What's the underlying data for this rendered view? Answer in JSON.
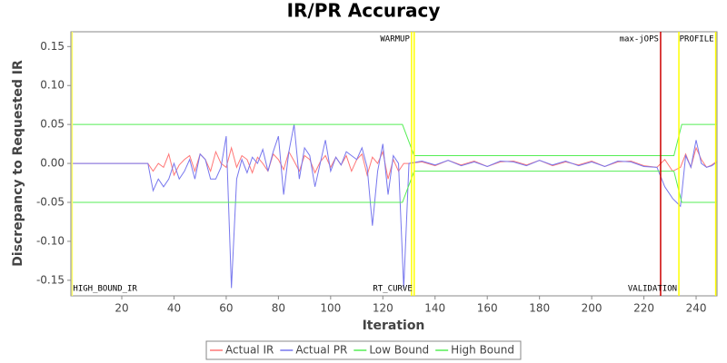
{
  "chart_data": {
    "type": "line",
    "title": "IR/PR Accuracy",
    "x_label": "Iteration",
    "y_label": "Discrepancy to Requested IR",
    "xlim": [
      0.5,
      248
    ],
    "ylim": [
      -0.17,
      0.169
    ],
    "xticks": [
      20,
      40,
      60,
      80,
      100,
      120,
      140,
      160,
      180,
      200,
      220,
      240
    ],
    "yticks": [
      -0.15,
      {
        "value": -0.1,
        "label": "-0.10"
      },
      -0.05,
      {
        "value": 0,
        "label": "0.00"
      },
      0.05,
      {
        "value": 0.1,
        "label": "0.10"
      },
      0.15
    ],
    "grid": false,
    "legend": "bottom",
    "markers": [
      {
        "value": 1,
        "label": "HIGH_BOUND_IR",
        "position": "bottom",
        "color": "#ffff66"
      },
      {
        "value": 131,
        "label": "WARMUP",
        "position": "top",
        "color": "#ffff00"
      },
      {
        "value": 132,
        "label": "RT_CURVE",
        "position": "bottom",
        "color": "#ffff00"
      },
      {
        "value": 226.4,
        "label": "max-jOPS",
        "position": "top",
        "color": "#cc0000"
      },
      {
        "value": 233.4,
        "label": "VALIDATION",
        "position": "bottom",
        "color": "#ffff00"
      },
      {
        "value": 247.5,
        "label": "PROFILE",
        "position": "top",
        "color": "#ffff00"
      }
    ],
    "series": [
      {
        "name": "Actual IR",
        "color": "#ff7777",
        "x": [
          1,
          30,
          32,
          34,
          36,
          38,
          40,
          42,
          44,
          46,
          48,
          50,
          52,
          54,
          56,
          58,
          60,
          62,
          64,
          66,
          68,
          70,
          72,
          74,
          76,
          78,
          80,
          82,
          84,
          86,
          88,
          90,
          92,
          94,
          96,
          98,
          100,
          102,
          104,
          106,
          108,
          110,
          112,
          114,
          116,
          118,
          120,
          122,
          124,
          126,
          128,
          130,
          135,
          140,
          145,
          150,
          155,
          160,
          165,
          170,
          175,
          180,
          185,
          190,
          195,
          200,
          205,
          210,
          215,
          220,
          225,
          228,
          231,
          234,
          236,
          238,
          240,
          242,
          244,
          246,
          248
        ],
        "values": [
          0,
          0,
          -0.01,
          0.0,
          -0.005,
          0.012,
          -0.015,
          -0.002,
          0.005,
          0.01,
          -0.01,
          0.012,
          0.005,
          -0.01,
          0.015,
          0.0,
          -0.005,
          0.02,
          -0.005,
          0.01,
          0.005,
          -0.012,
          0.008,
          0.0,
          -0.01,
          0.012,
          0.005,
          -0.008,
          0.015,
          0.003,
          -0.01,
          0.01,
          0.005,
          -0.012,
          0.002,
          0.01,
          -0.005,
          0.008,
          -0.002,
          0.01,
          -0.01,
          0.005,
          0.012,
          -0.015,
          0.008,
          0.0,
          0.015,
          -0.02,
          0.005,
          -0.01,
          0.0,
          0.0,
          0.002,
          -0.003,
          0.004,
          -0.002,
          0.003,
          -0.004,
          0.002,
          0.003,
          -0.002,
          0.004,
          -0.003,
          0.002,
          -0.002,
          0.003,
          -0.004,
          0.002,
          0.003,
          -0.003,
          -0.005,
          0.005,
          -0.01,
          -0.005,
          0.012,
          -0.005,
          0.02,
          0.005,
          -0.005,
          -0.002,
          0.003
        ]
      },
      {
        "name": "Actual PR",
        "color": "#7777ee",
        "x": [
          1,
          30,
          32,
          34,
          36,
          38,
          40,
          42,
          44,
          46,
          48,
          50,
          52,
          54,
          56,
          58,
          60,
          62,
          64,
          66,
          68,
          70,
          72,
          74,
          76,
          78,
          80,
          82,
          84,
          86,
          88,
          90,
          92,
          94,
          96,
          98,
          100,
          102,
          104,
          106,
          108,
          110,
          112,
          114,
          116,
          118,
          120,
          122,
          124,
          126,
          128,
          130,
          135,
          140,
          145,
          150,
          155,
          160,
          165,
          170,
          175,
          180,
          185,
          190,
          195,
          200,
          205,
          210,
          215,
          220,
          225,
          228,
          231,
          234,
          236,
          238,
          240,
          242,
          244,
          246,
          248
        ],
        "values": [
          0,
          0,
          -0.035,
          -0.02,
          -0.03,
          -0.02,
          0.0,
          -0.02,
          -0.01,
          0.005,
          -0.02,
          0.012,
          0.005,
          -0.02,
          -0.02,
          -0.005,
          0.035,
          -0.16,
          -0.02,
          0.005,
          -0.012,
          0.008,
          0.0,
          0.018,
          -0.01,
          0.015,
          0.035,
          -0.04,
          0.015,
          0.05,
          -0.02,
          0.02,
          0.01,
          -0.03,
          0.0,
          0.03,
          -0.01,
          0.008,
          -0.002,
          0.015,
          0.01,
          0.005,
          0.02,
          -0.005,
          -0.08,
          -0.01,
          0.025,
          -0.04,
          0.01,
          0.0,
          -0.16,
          0.0,
          0.003,
          -0.002,
          0.004,
          -0.003,
          0.002,
          -0.004,
          0.003,
          0.002,
          -0.003,
          0.004,
          -0.002,
          0.003,
          -0.003,
          0.002,
          -0.004,
          0.003,
          0.002,
          -0.004,
          -0.005,
          -0.03,
          -0.045,
          -0.055,
          0.01,
          -0.005,
          0.03,
          0.0,
          -0.005,
          -0.003,
          0.002
        ]
      },
      {
        "name": "Low Bound",
        "color": "#55ee55",
        "x": [
          1,
          127.5,
          132,
          231.5,
          234.5,
          248
        ],
        "values": [
          -0.05,
          -0.05,
          -0.01,
          -0.01,
          -0.05,
          -0.05
        ]
      },
      {
        "name": "High Bound",
        "color": "#55ee55",
        "x": [
          1,
          127.5,
          132,
          231.5,
          234.5,
          248
        ],
        "values": [
          0.05,
          0.05,
          0.01,
          0.01,
          0.05,
          0.05
        ]
      }
    ]
  }
}
